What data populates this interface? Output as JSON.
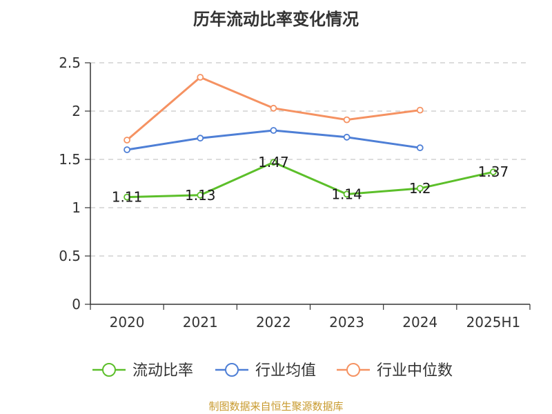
{
  "chart_data": {
    "type": "line",
    "title": "历年流动比率变化情况",
    "xlabel": "",
    "ylabel": "",
    "categories": [
      "2020",
      "2021",
      "2022",
      "2023",
      "2024",
      "2025H1"
    ],
    "ylim": [
      0,
      2.5
    ],
    "yticks": [
      "0",
      "0.5",
      "1",
      "1.5",
      "2",
      "2.5"
    ],
    "grid": true,
    "legend_position": "bottom",
    "series": [
      {
        "name": "流动比率",
        "color": "#5cbf2a",
        "values": [
          1.11,
          1.13,
          1.47,
          1.14,
          1.2,
          1.37
        ],
        "labels": [
          "1.11",
          "1.13",
          "1.47",
          "1.14",
          "1.2",
          "1.37"
        ]
      },
      {
        "name": "行业均值",
        "color": "#4e7fd6",
        "values": [
          1.6,
          1.72,
          1.8,
          1.73,
          1.62,
          null
        ]
      },
      {
        "name": "行业中位数",
        "color": "#f59262",
        "values": [
          1.7,
          2.35,
          2.03,
          1.91,
          2.01,
          null
        ]
      }
    ]
  },
  "source": "制图数据来自恒生聚源数据库"
}
